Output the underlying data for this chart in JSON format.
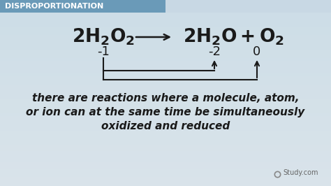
{
  "background_top_color": "#c8d8e4",
  "background_bottom_color": "#e8edf0",
  "header_color_left": "#6a9ab8",
  "header_color_right": "#c8d8e4",
  "header_text": "DISPROPORTIONATION",
  "header_fontsize": 8,
  "ox_left": "-1",
  "ox_mid": "-2",
  "ox_right": "0",
  "body_text_line1": "there are reactions where a molecule, atom,",
  "body_text_line2": "or ion can at the same time be simultaneously",
  "body_text_line3": "oxidized and reduced",
  "text_color": "#1a1a1a",
  "study_text": "Study.com",
  "fig_width": 4.74,
  "fig_height": 2.66,
  "dpi": 100
}
